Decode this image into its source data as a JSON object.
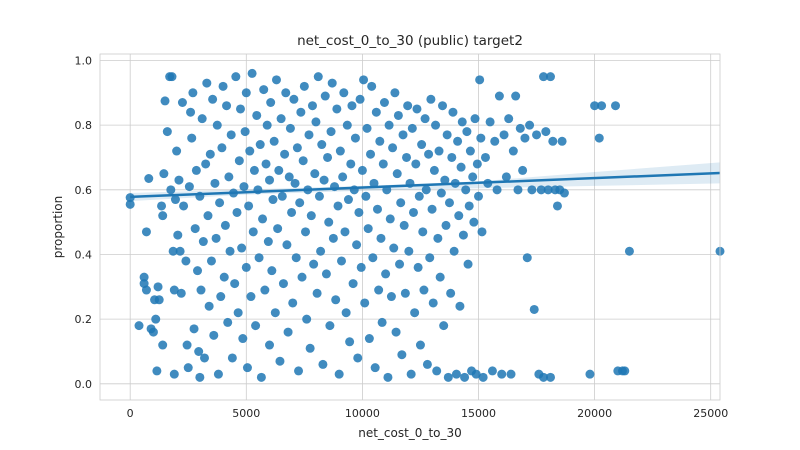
{
  "chart_data": {
    "type": "scatter",
    "title": "net_cost_0_to_30 (public) target2",
    "xlabel": "net_cost_0_to_30",
    "ylabel": "proportion",
    "xlim": [
      -1300,
      25400
    ],
    "ylim": [
      -0.05,
      1.02
    ],
    "xticks": [
      0,
      5000,
      10000,
      15000,
      20000,
      25000
    ],
    "yticks": [
      0.0,
      0.2,
      0.4,
      0.6,
      0.8,
      1.0
    ],
    "xtick_labels": [
      "0",
      "5000",
      "10000",
      "15000",
      "20000",
      "25000"
    ],
    "ytick_labels": [
      "0.0",
      "0.2",
      "0.4",
      "0.6",
      "0.8",
      "1.0"
    ],
    "grid": true,
    "colors": {
      "points": "#1f77b4",
      "regression": "#1f77b4",
      "band": "#1f77b4"
    },
    "regression": {
      "x": [
        0,
        25400
      ],
      "y": [
        0.578,
        0.652
      ]
    },
    "confidence_band": {
      "x": [
        0,
        5000,
        10000,
        15000,
        20000,
        25400
      ],
      "lower": [
        0.565,
        0.585,
        0.597,
        0.605,
        0.612,
        0.62
      ],
      "upper": [
        0.59,
        0.601,
        0.612,
        0.626,
        0.655,
        0.685
      ]
    },
    "points": [
      [
        0,
        0.576
      ],
      [
        0,
        0.555
      ],
      [
        380,
        0.18
      ],
      [
        600,
        0.33
      ],
      [
        600,
        0.31
      ],
      [
        700,
        0.29
      ],
      [
        700,
        0.47
      ],
      [
        800,
        0.635
      ],
      [
        900,
        0.17
      ],
      [
        1000,
        0.16
      ],
      [
        1050,
        0.26
      ],
      [
        1100,
        0.2
      ],
      [
        1150,
        0.04
      ],
      [
        1200,
        0.3
      ],
      [
        1250,
        0.26
      ],
      [
        1350,
        0.55
      ],
      [
        1400,
        0.52
      ],
      [
        1400,
        0.12
      ],
      [
        1450,
        0.65
      ],
      [
        1500,
        0.875
      ],
      [
        1600,
        0.78
      ],
      [
        1700,
        0.95
      ],
      [
        1750,
        0.6
      ],
      [
        1800,
        0.95
      ],
      [
        1850,
        0.41
      ],
      [
        1900,
        0.03
      ],
      [
        1900,
        0.29
      ],
      [
        1950,
        0.57
      ],
      [
        2000,
        0.72
      ],
      [
        2050,
        0.46
      ],
      [
        2100,
        0.63
      ],
      [
        2150,
        0.41
      ],
      [
        2200,
        0.28
      ],
      [
        2250,
        0.87
      ],
      [
        2300,
        0.55
      ],
      [
        2400,
        0.38
      ],
      [
        2450,
        0.12
      ],
      [
        2500,
        0.05
      ],
      [
        2550,
        0.61
      ],
      [
        2600,
        0.84
      ],
      [
        2650,
        0.76
      ],
      [
        2700,
        0.9
      ],
      [
        2750,
        0.17
      ],
      [
        2800,
        0.48
      ],
      [
        2850,
        0.66
      ],
      [
        2900,
        0.35
      ],
      [
        2950,
        0.1
      ],
      [
        3000,
        0.58
      ],
      [
        3000,
        0.02
      ],
      [
        3050,
        0.29
      ],
      [
        3100,
        0.82
      ],
      [
        3150,
        0.44
      ],
      [
        3200,
        0.08
      ],
      [
        3250,
        0.68
      ],
      [
        3300,
        0.93
      ],
      [
        3350,
        0.52
      ],
      [
        3400,
        0.24
      ],
      [
        3450,
        0.71
      ],
      [
        3500,
        0.38
      ],
      [
        3550,
        0.88
      ],
      [
        3600,
        0.15
      ],
      [
        3650,
        0.62
      ],
      [
        3700,
        0.45
      ],
      [
        3750,
        0.8
      ],
      [
        3800,
        0.03
      ],
      [
        3850,
        0.56
      ],
      [
        3900,
        0.27
      ],
      [
        3950,
        0.73
      ],
      [
        4000,
        0.92
      ],
      [
        4050,
        0.33
      ],
      [
        4100,
        0.49
      ],
      [
        4150,
        0.86
      ],
      [
        4200,
        0.19
      ],
      [
        4250,
        0.64
      ],
      [
        4300,
        0.41
      ],
      [
        4350,
        0.77
      ],
      [
        4400,
        0.08
      ],
      [
        4450,
        0.59
      ],
      [
        4500,
        0.31
      ],
      [
        4550,
        0.95
      ],
      [
        4600,
        0.53
      ],
      [
        4650,
        0.22
      ],
      [
        4700,
        0.69
      ],
      [
        4750,
        0.85
      ],
      [
        4800,
        0.42
      ],
      [
        4850,
        0.14
      ],
      [
        4900,
        0.61
      ],
      [
        4950,
        0.78
      ],
      [
        5000,
        0.36
      ],
      [
        5000,
        0.9
      ],
      [
        5050,
        0.05
      ],
      [
        5100,
        0.55
      ],
      [
        5150,
        0.72
      ],
      [
        5200,
        0.27
      ],
      [
        5250,
        0.96
      ],
      [
        5300,
        0.47
      ],
      [
        5350,
        0.66
      ],
      [
        5400,
        0.18
      ],
      [
        5450,
        0.83
      ],
      [
        5500,
        0.6
      ],
      [
        5550,
        0.39
      ],
      [
        5600,
        0.74
      ],
      [
        5650,
        0.02
      ],
      [
        5700,
        0.51
      ],
      [
        5750,
        0.91
      ],
      [
        5800,
        0.29
      ],
      [
        5850,
        0.68
      ],
      [
        5900,
        0.8
      ],
      [
        5950,
        0.44
      ],
      [
        6000,
        0.12
      ],
      [
        6000,
        0.63
      ],
      [
        6050,
        0.87
      ],
      [
        6100,
        0.35
      ],
      [
        6150,
        0.57
      ],
      [
        6200,
        0.75
      ],
      [
        6250,
        0.22
      ],
      [
        6300,
        0.94
      ],
      [
        6350,
        0.48
      ],
      [
        6400,
        0.66
      ],
      [
        6450,
        0.07
      ],
      [
        6500,
        0.82
      ],
      [
        6550,
        0.58
      ],
      [
        6600,
        0.31
      ],
      [
        6650,
        0.71
      ],
      [
        6700,
        0.9
      ],
      [
        6750,
        0.43
      ],
      [
        6800,
        0.16
      ],
      [
        6850,
        0.64
      ],
      [
        6900,
        0.79
      ],
      [
        6950,
        0.53
      ],
      [
        7000,
        0.25
      ],
      [
        7050,
        0.88
      ],
      [
        7100,
        0.62
      ],
      [
        7150,
        0.39
      ],
      [
        7200,
        0.73
      ],
      [
        7250,
        0.04
      ],
      [
        7300,
        0.56
      ],
      [
        7350,
        0.84
      ],
      [
        7400,
        0.33
      ],
      [
        7450,
        0.69
      ],
      [
        7500,
        0.92
      ],
      [
        7550,
        0.47
      ],
      [
        7600,
        0.2
      ],
      [
        7650,
        0.6
      ],
      [
        7700,
        0.77
      ],
      [
        7750,
        0.11
      ],
      [
        7800,
        0.52
      ],
      [
        7850,
        0.86
      ],
      [
        7900,
        0.37
      ],
      [
        7950,
        0.65
      ],
      [
        8000,
        0.81
      ],
      [
        8050,
        0.28
      ],
      [
        8100,
        0.95
      ],
      [
        8150,
        0.58
      ],
      [
        8200,
        0.41
      ],
      [
        8250,
        0.74
      ],
      [
        8300,
        0.06
      ],
      [
        8350,
        0.63
      ],
      [
        8400,
        0.89
      ],
      [
        8450,
        0.34
      ],
      [
        8500,
        0.7
      ],
      [
        8550,
        0.5
      ],
      [
        8600,
        0.18
      ],
      [
        8650,
        0.78
      ],
      [
        8700,
        0.93
      ],
      [
        8750,
        0.45
      ],
      [
        8800,
        0.61
      ],
      [
        8850,
        0.26
      ],
      [
        8900,
        0.85
      ],
      [
        8950,
        0.55
      ],
      [
        9000,
        0.03
      ],
      [
        9050,
        0.72
      ],
      [
        9100,
        0.38
      ],
      [
        9150,
        0.64
      ],
      [
        9200,
        0.9
      ],
      [
        9250,
        0.47
      ],
      [
        9300,
        0.22
      ],
      [
        9350,
        0.8
      ],
      [
        9400,
        0.57
      ],
      [
        9450,
        0.13
      ],
      [
        9500,
        0.68
      ],
      [
        9550,
        0.86
      ],
      [
        9600,
        0.31
      ],
      [
        9650,
        0.6
      ],
      [
        9700,
        0.76
      ],
      [
        9750,
        0.43
      ],
      [
        9800,
        0.08
      ],
      [
        9850,
        0.53
      ],
      [
        9900,
        0.88
      ],
      [
        9950,
        0.36
      ],
      [
        10000,
        0.66
      ],
      [
        10050,
        0.94
      ],
      [
        10100,
        0.25
      ],
      [
        10150,
        0.58
      ],
      [
        10200,
        0.79
      ],
      [
        10250,
        0.48
      ],
      [
        10300,
        0.14
      ],
      [
        10350,
        0.71
      ],
      [
        10400,
        0.92
      ],
      [
        10450,
        0.39
      ],
      [
        10500,
        0.62
      ],
      [
        10550,
        0.05
      ],
      [
        10600,
        0.84
      ],
      [
        10650,
        0.54
      ],
      [
        10700,
        0.29
      ],
      [
        10750,
        0.75
      ],
      [
        10800,
        0.45
      ],
      [
        10850,
        0.19
      ],
      [
        10900,
        0.68
      ],
      [
        10950,
        0.87
      ],
      [
        11000,
        0.34
      ],
      [
        11050,
        0.6
      ],
      [
        11100,
        0.02
      ],
      [
        11150,
        0.8
      ],
      [
        11200,
        0.51
      ],
      [
        11250,
        0.27
      ],
      [
        11300,
        0.73
      ],
      [
        11350,
        0.42
      ],
      [
        11400,
        0.9
      ],
      [
        11450,
        0.16
      ],
      [
        11500,
        0.65
      ],
      [
        11550,
        0.83
      ],
      [
        11600,
        0.37
      ],
      [
        11650,
        0.56
      ],
      [
        11700,
        0.09
      ],
      [
        11750,
        0.77
      ],
      [
        11800,
        0.49
      ],
      [
        11850,
        0.28
      ],
      [
        11900,
        0.7
      ],
      [
        11950,
        0.86
      ],
      [
        12000,
        0.41
      ],
      [
        12050,
        0.62
      ],
      [
        12100,
        0.03
      ],
      [
        12150,
        0.79
      ],
      [
        12200,
        0.53
      ],
      [
        12250,
        0.22
      ],
      [
        12300,
        0.68
      ],
      [
        12350,
        0.85
      ],
      [
        12400,
        0.36
      ],
      [
        12450,
        0.58
      ],
      [
        12500,
        0.12
      ],
      [
        12550,
        0.74
      ],
      [
        12600,
        0.47
      ],
      [
        12650,
        0.29
      ],
      [
        12700,
        0.82
      ],
      [
        12750,
        0.6
      ],
      [
        12800,
        0.06
      ],
      [
        12850,
        0.71
      ],
      [
        12900,
        0.39
      ],
      [
        12950,
        0.88
      ],
      [
        13000,
        0.54
      ],
      [
        13050,
        0.25
      ],
      [
        13100,
        0.66
      ],
      [
        13150,
        0.8
      ],
      [
        13200,
        0.04
      ],
      [
        13250,
        0.45
      ],
      [
        13300,
        0.72
      ],
      [
        13350,
        0.33
      ],
      [
        13400,
        0.59
      ],
      [
        13450,
        0.86
      ],
      [
        13500,
        0.18
      ],
      [
        13550,
        0.63
      ],
      [
        13600,
        0.49
      ],
      [
        13650,
        0.77
      ],
      [
        13700,
        0.02
      ],
      [
        13750,
        0.56
      ],
      [
        13800,
        0.28
      ],
      [
        13850,
        0.7
      ],
      [
        13900,
        0.84
      ],
      [
        13950,
        0.41
      ],
      [
        14000,
        0.62
      ],
      [
        14050,
        0.03
      ],
      [
        14100,
        0.75
      ],
      [
        14150,
        0.52
      ],
      [
        14200,
        0.24
      ],
      [
        14250,
        0.67
      ],
      [
        14300,
        0.81
      ],
      [
        14350,
        0.46
      ],
      [
        14400,
        0.02
      ],
      [
        14450,
        0.6
      ],
      [
        14500,
        0.78
      ],
      [
        14550,
        0.37
      ],
      [
        14600,
        0.55
      ],
      [
        14650,
        0.72
      ],
      [
        14700,
        0.04
      ],
      [
        14750,
        0.64
      ],
      [
        14800,
        0.5
      ],
      [
        14850,
        0.82
      ],
      [
        14900,
        0.03
      ],
      [
        14950,
        0.68
      ],
      [
        15000,
        0.58
      ],
      [
        15050,
        0.94
      ],
      [
        15100,
        0.76
      ],
      [
        15150,
        0.47
      ],
      [
        15200,
        0.02
      ],
      [
        15300,
        0.7
      ],
      [
        15400,
        0.62
      ],
      [
        15500,
        0.81
      ],
      [
        15600,
        0.04
      ],
      [
        15700,
        0.75
      ],
      [
        15800,
        0.6
      ],
      [
        15900,
        0.89
      ],
      [
        16000,
        0.03
      ],
      [
        16100,
        0.77
      ],
      [
        16200,
        0.64
      ],
      [
        16300,
        0.82
      ],
      [
        16400,
        0.03
      ],
      [
        16500,
        0.72
      ],
      [
        16600,
        0.89
      ],
      [
        16700,
        0.6
      ],
      [
        16800,
        0.79
      ],
      [
        16900,
        0.66
      ],
      [
        17000,
        0.76
      ],
      [
        17100,
        0.39
      ],
      [
        17200,
        0.8
      ],
      [
        17300,
        0.6
      ],
      [
        17400,
        0.23
      ],
      [
        17500,
        0.77
      ],
      [
        17600,
        0.03
      ],
      [
        17700,
        0.6
      ],
      [
        17800,
        0.02
      ],
      [
        17800,
        0.95
      ],
      [
        17900,
        0.78
      ],
      [
        18000,
        0.6
      ],
      [
        18100,
        0.95
      ],
      [
        18100,
        0.02
      ],
      [
        18200,
        0.75
      ],
      [
        18300,
        0.6
      ],
      [
        18400,
        0.55
      ],
      [
        18500,
        0.6
      ],
      [
        18600,
        0.75
      ],
      [
        18700,
        0.59
      ],
      [
        19800,
        0.03
      ],
      [
        20000,
        0.86
      ],
      [
        20200,
        0.76
      ],
      [
        20300,
        0.86
      ],
      [
        20900,
        0.86
      ],
      [
        21000,
        0.04
      ],
      [
        21200,
        0.04
      ],
      [
        21300,
        0.04
      ],
      [
        21500,
        0.41
      ],
      [
        25400,
        0.41
      ]
    ]
  }
}
